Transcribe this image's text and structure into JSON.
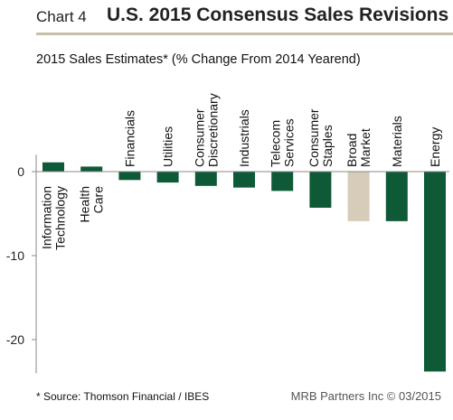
{
  "header": {
    "chart_number": "Chart 4",
    "title": "U.S. 2015 Consensus Sales Revisions"
  },
  "colors": {
    "bar": "#0e5a36",
    "highlight_bar": "#d6ccb9",
    "axis": "#888888",
    "rule": "#c9bfa9"
  },
  "chart_data": {
    "type": "bar",
    "title": "2015 Sales Estimates* (% Change From 2014 Yearend)",
    "xlabel": "",
    "ylabel": "",
    "ylim": [
      -24,
      2
    ],
    "yticks": [
      0,
      -10,
      -20
    ],
    "ytick_labels": [
      "0",
      "-10",
      "-20"
    ],
    "grid": false,
    "legend": "none",
    "categories": [
      [
        "Information",
        "Technology"
      ],
      [
        "Health",
        "Care"
      ],
      [
        "Financials"
      ],
      [
        "Utilities"
      ],
      [
        "Consumer",
        "Discretionary"
      ],
      [
        "Industrials"
      ],
      [
        "Telecom",
        "Services"
      ],
      [
        "Consumer",
        "Staples"
      ],
      [
        "Broad",
        "Market"
      ],
      [
        "Materials"
      ],
      [
        "Energy"
      ]
    ],
    "values": [
      1.1,
      0.6,
      -1.0,
      -1.3,
      -1.7,
      -1.9,
      -2.3,
      -4.3,
      -5.9,
      -5.9,
      -23.8
    ],
    "highlight_index": 8
  },
  "footer": {
    "source": "* Source: Thomson Financial / IBES",
    "credit": "MRB Partners Inc © 03/2015"
  }
}
